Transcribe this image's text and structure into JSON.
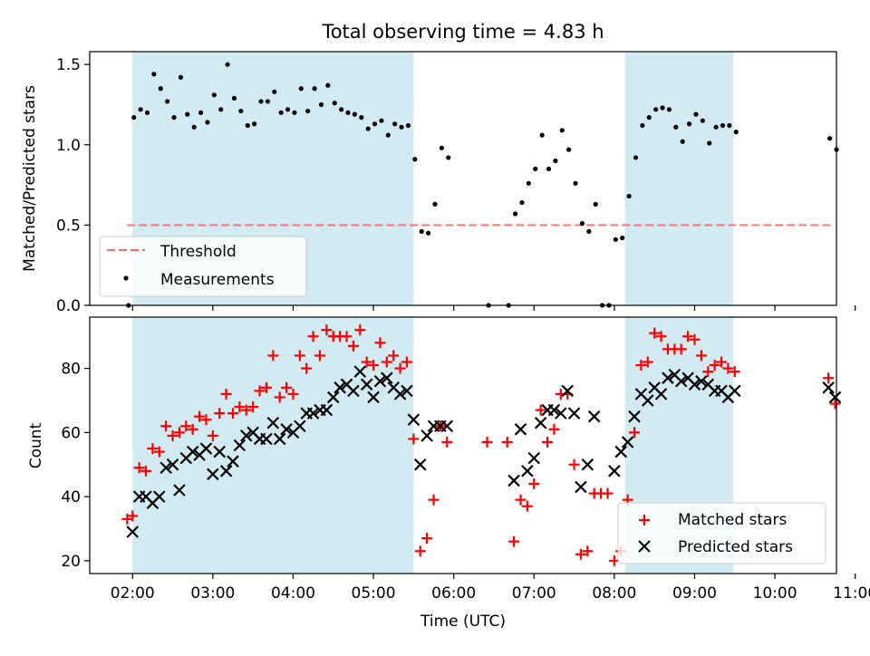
{
  "title": "Total observing time = 4.83 h",
  "xlabel": "Time (UTC)",
  "xticks": [
    "02:00",
    "03:00",
    "04:00",
    "05:00",
    "06:00",
    "07:00",
    "08:00",
    "09:00",
    "10:00",
    "11:00"
  ],
  "colors": {
    "shade": "#add8e6",
    "threshold": "#ff6666",
    "matched": "#ff0000",
    "predicted": "#000000",
    "points": "#000000"
  },
  "chart_data": [
    {
      "type": "scatter",
      "ylabel": "Matched/Predicted stars",
      "ylim": [
        0,
        1.58
      ],
      "yticks": [
        "0.0",
        "0.5",
        "1.0",
        "1.5"
      ],
      "xlim": [
        "01:28",
        "10:46"
      ],
      "grid": false,
      "legend_position": "lower-left",
      "observing_windows": [
        [
          "02:00",
          "05:30"
        ],
        [
          "08:08",
          "09:29"
        ]
      ],
      "threshold": {
        "name": "Threshold",
        "value": 0.5,
        "x": [
          "01:56",
          "10:44"
        ]
      },
      "series": [
        {
          "name": "Measurements",
          "points": [
            [
              "01:57",
              0.0
            ],
            [
              "02:01",
              1.17
            ],
            [
              "02:06",
              1.22
            ],
            [
              "02:11",
              1.2
            ],
            [
              "02:16",
              1.44
            ],
            [
              "02:21",
              1.35
            ],
            [
              "02:26",
              1.27
            ],
            [
              "02:31",
              1.17
            ],
            [
              "02:36",
              1.42
            ],
            [
              "02:41",
              1.19
            ],
            [
              "02:46",
              1.11
            ],
            [
              "02:51",
              1.2
            ],
            [
              "02:56",
              1.14
            ],
            [
              "03:01",
              1.31
            ],
            [
              "03:06",
              1.22
            ],
            [
              "03:11",
              1.5
            ],
            [
              "03:16",
              1.29
            ],
            [
              "03:21",
              1.21
            ],
            [
              "03:26",
              1.12
            ],
            [
              "03:31",
              1.13
            ],
            [
              "03:36",
              1.27
            ],
            [
              "03:41",
              1.27
            ],
            [
              "03:46",
              1.33
            ],
            [
              "03:51",
              1.2
            ],
            [
              "03:56",
              1.22
            ],
            [
              "04:01",
              1.2
            ],
            [
              "04:06",
              1.35
            ],
            [
              "04:11",
              1.21
            ],
            [
              "04:16",
              1.35
            ],
            [
              "04:21",
              1.25
            ],
            [
              "04:26",
              1.37
            ],
            [
              "04:31",
              1.26
            ],
            [
              "04:36",
              1.22
            ],
            [
              "04:41",
              1.2
            ],
            [
              "04:46",
              1.19
            ],
            [
              "04:51",
              1.17
            ],
            [
              "04:56",
              1.1
            ],
            [
              "05:01",
              1.13
            ],
            [
              "05:06",
              1.15
            ],
            [
              "05:11",
              1.06
            ],
            [
              "05:16",
              1.13
            ],
            [
              "05:21",
              1.11
            ],
            [
              "05:26",
              1.12
            ],
            [
              "05:31",
              0.91
            ],
            [
              "05:36",
              0.46
            ],
            [
              "05:41",
              0.45
            ],
            [
              "05:46",
              0.63
            ],
            [
              "05:51",
              0.98
            ],
            [
              "05:56",
              0.92
            ],
            [
              "06:26",
              0.0
            ],
            [
              "06:41",
              0.0
            ],
            [
              "06:46",
              0.57
            ],
            [
              "06:51",
              0.64
            ],
            [
              "06:56",
              0.76
            ],
            [
              "07:01",
              0.85
            ],
            [
              "07:06",
              1.06
            ],
            [
              "07:11",
              0.85
            ],
            [
              "07:16",
              0.9
            ],
            [
              "07:21",
              1.09
            ],
            [
              "07:26",
              0.97
            ],
            [
              "07:31",
              0.76
            ],
            [
              "07:36",
              0.51
            ],
            [
              "07:41",
              0.46
            ],
            [
              "07:46",
              0.63
            ],
            [
              "07:51",
              0.0
            ],
            [
              "07:56",
              0.0
            ],
            [
              "08:01",
              0.41
            ],
            [
              "08:06",
              0.42
            ],
            [
              "08:11",
              0.68
            ],
            [
              "08:16",
              0.92
            ],
            [
              "08:21",
              1.12
            ],
            [
              "08:26",
              1.17
            ],
            [
              "08:31",
              1.22
            ],
            [
              "08:36",
              1.23
            ],
            [
              "08:41",
              1.22
            ],
            [
              "08:46",
              1.11
            ],
            [
              "08:51",
              1.02
            ],
            [
              "08:56",
              1.13
            ],
            [
              "09:01",
              1.19
            ],
            [
              "09:06",
              1.15
            ],
            [
              "09:11",
              1.01
            ],
            [
              "09:16",
              1.11
            ],
            [
              "09:21",
              1.12
            ],
            [
              "09:26",
              1.12
            ],
            [
              "09:31",
              1.08
            ],
            [
              "10:41",
              1.04
            ],
            [
              "10:46",
              0.97
            ]
          ]
        }
      ]
    },
    {
      "type": "scatter",
      "ylabel": "Count",
      "ylim": [
        16,
        96
      ],
      "yticks": [
        "20",
        "40",
        "60",
        "80"
      ],
      "xlim": [
        "01:28",
        "10:46"
      ],
      "grid": false,
      "legend_position": "lower-right",
      "observing_windows": [
        [
          "02:00",
          "05:30"
        ],
        [
          "08:08",
          "09:29"
        ]
      ],
      "series": [
        {
          "name": "Matched stars",
          "marker": "+",
          "points": [
            [
              "01:56",
              33
            ],
            [
              "02:00",
              34
            ],
            [
              "02:05",
              49
            ],
            [
              "02:10",
              48
            ],
            [
              "02:15",
              55
            ],
            [
              "02:20",
              54
            ],
            [
              "02:25",
              62
            ],
            [
              "02:30",
              59
            ],
            [
              "02:35",
              60
            ],
            [
              "02:40",
              62
            ],
            [
              "02:45",
              61
            ],
            [
              "02:50",
              65
            ],
            [
              "02:55",
              64
            ],
            [
              "03:00",
              59
            ],
            [
              "03:05",
              66
            ],
            [
              "03:10",
              72
            ],
            [
              "03:15",
              66
            ],
            [
              "03:20",
              68
            ],
            [
              "03:25",
              67
            ],
            [
              "03:30",
              68
            ],
            [
              "03:35",
              73
            ],
            [
              "03:40",
              74
            ],
            [
              "03:45",
              84
            ],
            [
              "03:50",
              71
            ],
            [
              "03:55",
              74
            ],
            [
              "04:00",
              72
            ],
            [
              "04:05",
              84
            ],
            [
              "04:10",
              80
            ],
            [
              "04:15",
              90
            ],
            [
              "04:20",
              84
            ],
            [
              "04:25",
              92
            ],
            [
              "04:30",
              90
            ],
            [
              "04:35",
              90
            ],
            [
              "04:40",
              90
            ],
            [
              "04:45",
              87
            ],
            [
              "04:50",
              92
            ],
            [
              "04:55",
              82
            ],
            [
              "05:00",
              81
            ],
            [
              "05:05",
              88
            ],
            [
              "05:10",
              82
            ],
            [
              "05:15",
              84
            ],
            [
              "05:20",
              80
            ],
            [
              "05:25",
              82
            ],
            [
              "05:30",
              58
            ],
            [
              "05:35",
              23
            ],
            [
              "05:40",
              27
            ],
            [
              "05:45",
              39
            ],
            [
              "05:50",
              62
            ],
            [
              "05:55",
              57
            ],
            [
              "06:25",
              57
            ],
            [
              "06:40",
              57
            ],
            [
              "06:45",
              26
            ],
            [
              "06:50",
              39
            ],
            [
              "06:55",
              37
            ],
            [
              "07:00",
              44
            ],
            [
              "07:05",
              67
            ],
            [
              "07:10",
              57
            ],
            [
              "07:15",
              61
            ],
            [
              "07:20",
              72
            ],
            [
              "07:25",
              72
            ],
            [
              "07:30",
              50
            ],
            [
              "07:35",
              22
            ],
            [
              "07:40",
              23
            ],
            [
              "07:45",
              41
            ],
            [
              "07:50",
              41
            ],
            [
              "07:55",
              41
            ],
            [
              "08:00",
              20
            ],
            [
              "08:05",
              23
            ],
            [
              "08:10",
              39
            ],
            [
              "08:15",
              60
            ],
            [
              "08:20",
              81
            ],
            [
              "08:25",
              82
            ],
            [
              "08:30",
              91
            ],
            [
              "08:35",
              90
            ],
            [
              "08:40",
              86
            ],
            [
              "08:45",
              86
            ],
            [
              "08:50",
              86
            ],
            [
              "08:55",
              90
            ],
            [
              "09:00",
              89
            ],
            [
              "09:05",
              84
            ],
            [
              "09:10",
              79
            ],
            [
              "09:15",
              81
            ],
            [
              "09:20",
              82
            ],
            [
              "09:25",
              80
            ],
            [
              "09:30",
              79
            ],
            [
              "10:40",
              77
            ],
            [
              "10:45",
              69
            ]
          ]
        },
        {
          "name": "Predicted stars",
          "marker": "x",
          "points": [
            [
              "02:00",
              29
            ],
            [
              "02:05",
              40
            ],
            [
              "02:10",
              40
            ],
            [
              "02:15",
              38
            ],
            [
              "02:20",
              40
            ],
            [
              "02:25",
              49
            ],
            [
              "02:30",
              50
            ],
            [
              "02:35",
              42
            ],
            [
              "02:40",
              52
            ],
            [
              "02:45",
              54
            ],
            [
              "02:50",
              53
            ],
            [
              "02:55",
              55
            ],
            [
              "03:00",
              47
            ],
            [
              "03:05",
              54
            ],
            [
              "03:10",
              48
            ],
            [
              "03:15",
              51
            ],
            [
              "03:20",
              56
            ],
            [
              "03:25",
              59
            ],
            [
              "03:30",
              60
            ],
            [
              "03:35",
              58
            ],
            [
              "03:40",
              58
            ],
            [
              "03:45",
              63
            ],
            [
              "03:50",
              58
            ],
            [
              "03:55",
              61
            ],
            [
              "04:00",
              60
            ],
            [
              "04:05",
              62
            ],
            [
              "04:10",
              66
            ],
            [
              "04:15",
              66
            ],
            [
              "04:20",
              67
            ],
            [
              "04:25",
              67
            ],
            [
              "04:30",
              71
            ],
            [
              "04:35",
              74
            ],
            [
              "04:40",
              75
            ],
            [
              "04:45",
              73
            ],
            [
              "04:50",
              79
            ],
            [
              "04:55",
              75
            ],
            [
              "05:00",
              71
            ],
            [
              "05:05",
              76
            ],
            [
              "05:10",
              77
            ],
            [
              "05:15",
              74
            ],
            [
              "05:20",
              72
            ],
            [
              "05:25",
              73
            ],
            [
              "05:30",
              64
            ],
            [
              "05:35",
              50
            ],
            [
              "05:40",
              59
            ],
            [
              "05:45",
              62
            ],
            [
              "05:50",
              62
            ],
            [
              "05:55",
              62
            ],
            [
              "06:45",
              45
            ],
            [
              "06:50",
              61
            ],
            [
              "06:55",
              48
            ],
            [
              "07:00",
              52
            ],
            [
              "07:05",
              63
            ],
            [
              "07:10",
              67
            ],
            [
              "07:15",
              67
            ],
            [
              "07:20",
              66
            ],
            [
              "07:25",
              73
            ],
            [
              "07:30",
              66
            ],
            [
              "07:35",
              43
            ],
            [
              "07:40",
              50
            ],
            [
              "07:45",
              65
            ],
            [
              "08:00",
              48
            ],
            [
              "08:05",
              54
            ],
            [
              "08:10",
              57
            ],
            [
              "08:15",
              65
            ],
            [
              "08:20",
              72
            ],
            [
              "08:25",
              70
            ],
            [
              "08:30",
              74
            ],
            [
              "08:35",
              72
            ],
            [
              "08:40",
              77
            ],
            [
              "08:45",
              78
            ],
            [
              "08:50",
              76
            ],
            [
              "08:55",
              77
            ],
            [
              "09:00",
              75
            ],
            [
              "09:05",
              76
            ],
            [
              "09:10",
              75
            ],
            [
              "09:15",
              73
            ],
            [
              "09:20",
              73
            ],
            [
              "09:25",
              71
            ],
            [
              "09:30",
              73
            ],
            [
              "10:40",
              74
            ],
            [
              "10:45",
              71
            ]
          ]
        }
      ]
    }
  ]
}
